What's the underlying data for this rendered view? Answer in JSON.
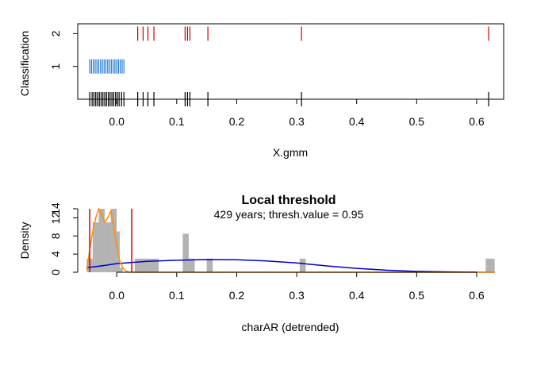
{
  "chart_data": [
    {
      "type": "scatter",
      "title": "",
      "xlabel": "X.gmm",
      "ylabel": "Classification",
      "xlim": [
        -0.065,
        0.645
      ],
      "ylim": [
        0,
        2.3
      ],
      "x_ticks": [
        "0.0",
        "0.1",
        "0.2",
        "0.3",
        "0.4",
        "0.5",
        "0.6"
      ],
      "y_ticks": [
        "1",
        "2"
      ],
      "grid": false,
      "series": [
        {
          "color": "#000000",
          "values": [
            -0.045,
            -0.041,
            -0.038,
            -0.035,
            -0.032,
            -0.029,
            -0.026,
            -0.023,
            -0.02,
            -0.017,
            -0.014,
            -0.011,
            -0.008,
            -0.005,
            -0.002,
            0.001,
            0.004,
            0.008,
            0.012,
            0.035,
            0.044,
            0.052,
            0.062,
            0.114,
            0.118,
            0.122,
            0.152,
            0.308,
            0.62
          ]
        },
        {
          "color": "#1f78d6",
          "values": [
            -0.045,
            -0.042,
            -0.039,
            -0.036,
            -0.033,
            -0.03,
            -0.027,
            -0.024,
            -0.021,
            -0.018,
            -0.015,
            -0.012,
            -0.009,
            -0.006,
            -0.003,
            0.0,
            0.003,
            0.006,
            0.009,
            0.012
          ]
        },
        {
          "color": "#cc0000",
          "values": [
            0.035,
            0.044,
            0.052,
            0.062,
            0.114,
            0.118,
            0.122,
            0.152,
            0.308,
            0.62
          ]
        }
      ]
    },
    {
      "type": "bar",
      "title": "Local threshold",
      "subtitle": "429 years; thresh.value = 0.95",
      "xlabel": "charAR (detrended)",
      "ylabel": "Density",
      "xlim": [
        -0.065,
        0.645
      ],
      "ylim": [
        0,
        14
      ],
      "x_ticks": [
        "0.0",
        "0.1",
        "0.2",
        "0.3",
        "0.4",
        "0.5",
        "0.6"
      ],
      "y_ticks": [
        "0",
        "4",
        "8",
        "12",
        "14"
      ],
      "grid": false,
      "bar_color": "#b3b3b3",
      "histogram": [
        {
          "x0": -0.05,
          "x1": -0.04,
          "y": 3
        },
        {
          "x0": -0.04,
          "x1": -0.03,
          "y": 11
        },
        {
          "x0": -0.03,
          "x1": -0.02,
          "y": 14
        },
        {
          "x0": -0.02,
          "x1": -0.01,
          "y": 11
        },
        {
          "x0": -0.01,
          "x1": 0.0,
          "y": 14
        },
        {
          "x0": 0.0,
          "x1": 0.005,
          "y": 9
        },
        {
          "x0": 0.005,
          "x1": 0.01,
          "y": 1
        },
        {
          "x0": 0.03,
          "x1": 0.07,
          "y": 3
        },
        {
          "x0": 0.11,
          "x1": 0.12,
          "y": 8.5
        },
        {
          "x0": 0.12,
          "x1": 0.13,
          "y": 3
        },
        {
          "x0": 0.15,
          "x1": 0.16,
          "y": 3
        },
        {
          "x0": 0.305,
          "x1": 0.315,
          "y": 3
        },
        {
          "x0": 0.615,
          "x1": 0.63,
          "y": 3
        }
      ],
      "lines": [
        {
          "color": "#0000cc",
          "x": [
            -0.05,
            -0.02,
            0.0,
            0.05,
            0.1,
            0.15,
            0.2,
            0.25,
            0.3,
            0.35,
            0.4,
            0.45,
            0.5,
            0.55,
            0.6,
            0.63
          ],
          "y": [
            1.0,
            1.5,
            1.9,
            2.4,
            2.65,
            2.8,
            2.75,
            2.5,
            2.05,
            1.4,
            0.85,
            0.45,
            0.2,
            0.08,
            0.03,
            0.01
          ]
        },
        {
          "color": "#ff8c00",
          "x": [
            -0.05,
            -0.045,
            -0.04,
            -0.035,
            -0.03,
            -0.025,
            -0.02,
            -0.015,
            -0.01,
            -0.005,
            0.0,
            0.005,
            0.01,
            0.015,
            0.02,
            0.03,
            0.1,
            0.63
          ],
          "y": [
            0.5,
            5,
            9,
            12,
            14,
            13,
            11,
            12,
            13.5,
            10,
            6,
            2.5,
            1,
            0.3,
            0.05,
            0,
            0,
            0
          ]
        }
      ],
      "vlines": [
        {
          "color": "#cc0000",
          "x": -0.045,
          "y_top": 14
        },
        {
          "color": "#cc0000",
          "x": 0.025,
          "y_top": 14
        }
      ]
    }
  ]
}
